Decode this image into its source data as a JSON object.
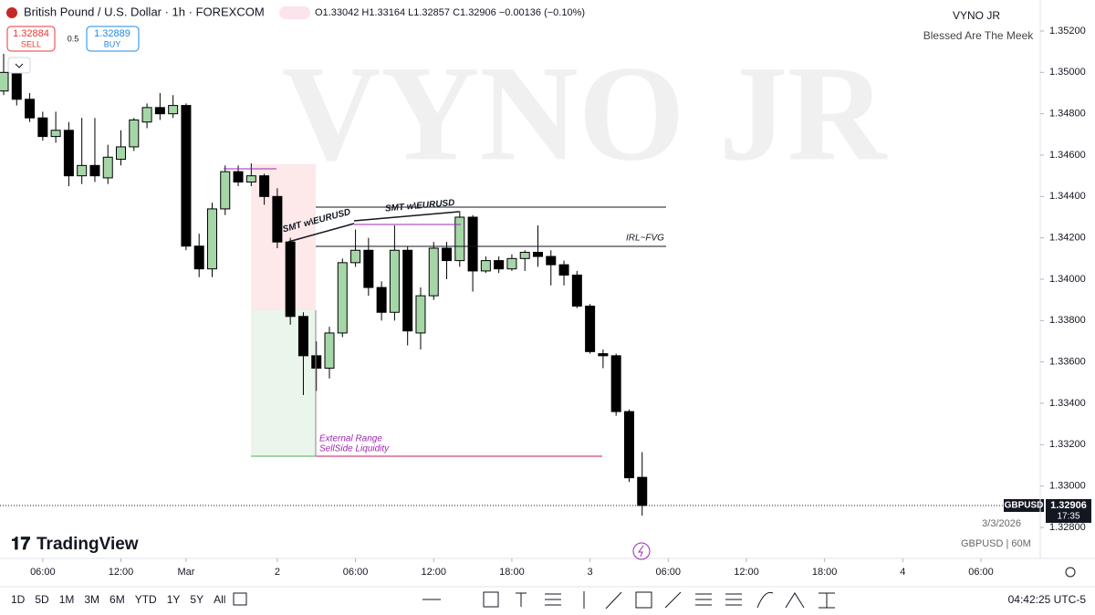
{
  "header": {
    "title": "British Pound / U.S. Dollar · 1h · FOREXCOM",
    "ohlc": "O1.33042 H1.33164 L1.32857 C1.32906 −0.00136 (−0.10%)",
    "sell_price": "1.32884",
    "sell": "SELL",
    "spread": "0.5",
    "buy_price": "1.32889",
    "buy": "BUY"
  },
  "branding": {
    "author": "VYNO JR",
    "tagline": "Blessed Are The Meek",
    "watermark": "VYNO JR",
    "logo": "TradingView",
    "date": "3/3/2026",
    "symbol_info": "GBPUSD | 60M"
  },
  "annotations": {
    "smt1": "SMT w\\EURUSD",
    "smt2": "SMT w\\EURUSD",
    "fvg": "IRL~FVG",
    "ext1": "External Range",
    "ext2": "SellSide Liquidity"
  },
  "price_label": {
    "symbol": "GBPUSD",
    "price": "1.32906",
    "countdown": "17:35"
  },
  "toolbar": {
    "ranges": [
      "1D",
      "5D",
      "1M",
      "3M",
      "6M",
      "YTD",
      "1Y",
      "5Y",
      "All"
    ],
    "clock": "04:42:25 UTC-5"
  },
  "chart_data": {
    "type": "candlestick",
    "up_color": "#a5d6a7",
    "down_color": "#000000",
    "open": [
      1.3491,
      1.35,
      1.3487,
      1.3478,
      1.3469,
      1.3472,
      1.345,
      1.3455,
      1.3449,
      1.3458,
      1.3464,
      1.3476,
      1.3483,
      1.348,
      1.3484,
      1.3416,
      1.3405,
      1.3434,
      1.3452,
      1.3447,
      1.345,
      1.344,
      1.3418,
      1.3382,
      1.3363,
      1.3357,
      1.3374,
      1.3408,
      1.3414,
      1.3396,
      1.3384,
      1.3414,
      1.3374,
      1.3392,
      1.3415,
      1.3409,
      1.343,
      1.3404,
      1.3409,
      1.3405,
      1.341,
      1.3413,
      1.3411,
      1.3407,
      1.3402,
      1.3387,
      1.3364,
      1.3363,
      1.3336,
      1.33042
    ],
    "high": [
      1.3509,
      1.3502,
      1.349,
      1.3481,
      1.3481,
      1.3476,
      1.3478,
      1.3478,
      1.3465,
      1.3472,
      1.3478,
      1.3485,
      1.349,
      1.3489,
      1.3485,
      1.3422,
      1.3437,
      1.3455,
      1.3455,
      1.3456,
      1.3451,
      1.3444,
      1.342,
      1.3384,
      1.337,
      1.3377,
      1.341,
      1.3424,
      1.342,
      1.3399,
      1.3426,
      1.3416,
      1.3396,
      1.3418,
      1.3418,
      1.3433,
      1.3431,
      1.3411,
      1.3411,
      1.3412,
      1.3414,
      1.3426,
      1.3414,
      1.3409,
      1.3404,
      1.3388,
      1.3366,
      1.3364,
      1.3337,
      1.33164
    ],
    "low": [
      1.3489,
      1.3484,
      1.3476,
      1.3467,
      1.3466,
      1.3445,
      1.3446,
      1.3447,
      1.3446,
      1.3455,
      1.3462,
      1.3473,
      1.3477,
      1.3478,
      1.3414,
      1.3401,
      1.3401,
      1.3431,
      1.3445,
      1.3445,
      1.3436,
      1.3415,
      1.3378,
      1.3344,
      1.3346,
      1.3352,
      1.3372,
      1.3406,
      1.3392,
      1.338,
      1.338,
      1.3368,
      1.3366,
      1.339,
      1.34,
      1.3406,
      1.3394,
      1.3403,
      1.3403,
      1.3404,
      1.3404,
      1.3406,
      1.3397,
      1.3397,
      1.3386,
      1.3364,
      1.3357,
      1.3334,
      1.3302,
      1.32857
    ],
    "close": [
      1.35,
      1.3487,
      1.3478,
      1.3469,
      1.3472,
      1.345,
      1.3455,
      1.345,
      1.3459,
      1.3464,
      1.3477,
      1.3483,
      1.348,
      1.3484,
      1.3416,
      1.3405,
      1.3434,
      1.3452,
      1.3447,
      1.345,
      1.344,
      1.3418,
      1.3382,
      1.3363,
      1.3357,
      1.3374,
      1.3408,
      1.3414,
      1.3396,
      1.3384,
      1.3414,
      1.3375,
      1.3392,
      1.3415,
      1.3409,
      1.343,
      1.3404,
      1.3409,
      1.3405,
      1.341,
      1.3413,
      1.3411,
      1.3407,
      1.3402,
      1.3387,
      1.3365,
      1.3363,
      1.3336,
      1.3304,
      1.32906
    ],
    "xlim": [
      -0.28,
      79.55
    ],
    "xticks": [
      {
        "value": 3,
        "label": "06:00"
      },
      {
        "value": 9,
        "label": "12:00"
      },
      {
        "value": 14,
        "label": "Mar"
      },
      {
        "value": 21,
        "label": "2"
      },
      {
        "value": 27,
        "label": "06:00"
      },
      {
        "value": 33,
        "label": "12:00"
      },
      {
        "value": 39,
        "label": "18:00"
      },
      {
        "value": 45,
        "label": "3"
      },
      {
        "value": 51,
        "label": "06:00"
      },
      {
        "value": 57,
        "label": "12:00"
      },
      {
        "value": 63,
        "label": "18:00"
      },
      {
        "value": 69,
        "label": "4"
      },
      {
        "value": 75,
        "label": "06:00"
      }
    ],
    "ylim": [
      1.3265,
      1.3535
    ],
    "yticks": [
      {
        "value": 1.352,
        "label": "1.35200"
      },
      {
        "value": 1.35,
        "label": "1.35000"
      },
      {
        "value": 1.348,
        "label": "1.34800"
      },
      {
        "value": 1.346,
        "label": "1.34600"
      },
      {
        "value": 1.344,
        "label": "1.34400"
      },
      {
        "value": 1.342,
        "label": "1.34200"
      },
      {
        "value": 1.34,
        "label": "1.34000"
      },
      {
        "value": 1.338,
        "label": "1.33800"
      },
      {
        "value": 1.336,
        "label": "1.33600"
      },
      {
        "value": 1.334,
        "label": "1.33400"
      },
      {
        "value": 1.332,
        "label": "1.33200"
      },
      {
        "value": 1.33,
        "label": "1.33000"
      },
      {
        "value": 1.328,
        "label": "1.32800"
      }
    ]
  }
}
